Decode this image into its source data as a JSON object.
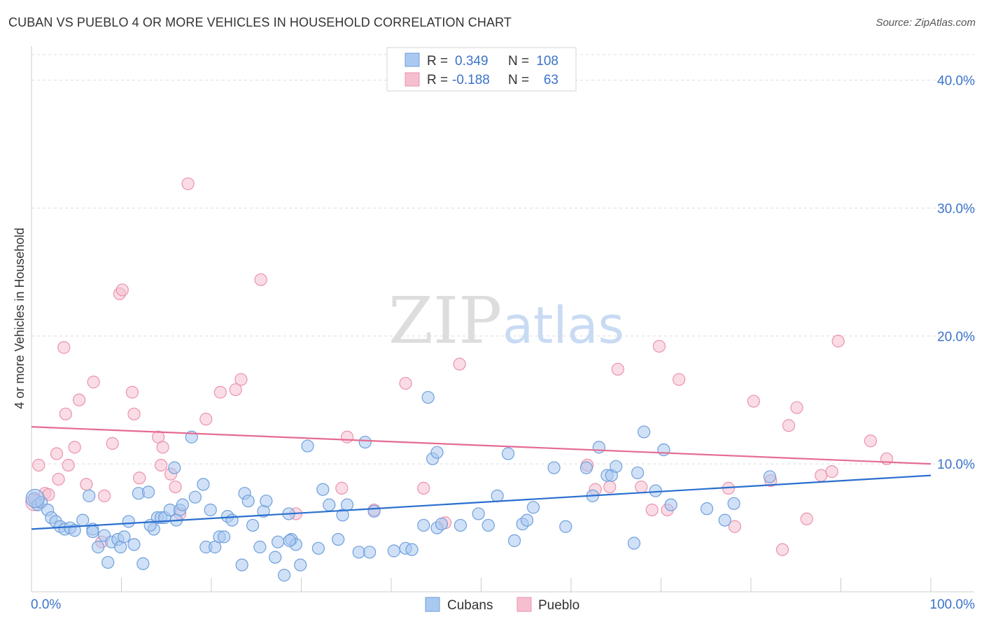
{
  "header": {
    "title": "CUBAN VS PUEBLO 4 OR MORE VEHICLES IN HOUSEHOLD CORRELATION CHART",
    "source": "Source: ZipAtlas.com"
  },
  "watermark": {
    "zip": "ZIP",
    "atlas": "atlas"
  },
  "stats_box": {
    "rows": [
      {
        "r_label": "R =",
        "r_value": "0.349",
        "n_label": "N =",
        "n_value": "108"
      },
      {
        "r_label": "R =",
        "r_value": "-0.188",
        "n_label": "N =",
        "n_value": "63"
      }
    ]
  },
  "legend": {
    "items": [
      "Cubans",
      "Pueblo"
    ]
  },
  "colors": {
    "cubans_fill": "#aac9f0",
    "cubans_stroke": "#6f9fdc",
    "cubans_line": "#2a6fcf",
    "pueblo_fill": "#f6bfd0",
    "pueblo_stroke": "#ea93ae",
    "pueblo_line": "#e56b93",
    "tick_text": "#3b73c9",
    "grid": "#dddddd"
  },
  "chart_data": {
    "type": "scatter",
    "title": "CUBAN VS PUEBLO 4 OR MORE VEHICLES IN HOUSEHOLD CORRELATION CHART",
    "xlabel": "",
    "ylabel": "4 or more Vehicles in Household",
    "xlim": [
      0,
      100
    ],
    "ylim": [
      0,
      42
    ],
    "x_ticks": [
      "0.0%",
      "100.0%"
    ],
    "y_ticks": [
      {
        "value": 10,
        "label": "10.0%"
      },
      {
        "value": 20,
        "label": "20.0%"
      },
      {
        "value": 30,
        "label": "30.0%"
      },
      {
        "value": 40,
        "label": "40.0%"
      }
    ],
    "grid": "horizontal dashed",
    "legend_position": "bottom-center",
    "series": [
      {
        "name": "Cubans",
        "r": 0.349,
        "n": 108,
        "trend": [
          [
            0,
            4.9
          ],
          [
            100,
            9.1
          ]
        ],
        "points": [
          [
            0.3,
            7.3
          ],
          [
            0.7,
            6.8
          ],
          [
            1.1,
            7.0
          ],
          [
            1.8,
            6.4
          ],
          [
            2.2,
            5.8
          ],
          [
            2.7,
            5.5
          ],
          [
            3.2,
            5.1
          ],
          [
            3.7,
            4.9
          ],
          [
            4.3,
            5.0
          ],
          [
            4.8,
            4.8
          ],
          [
            5.7,
            5.6
          ],
          [
            6.4,
            7.5
          ],
          [
            6.8,
            4.9
          ],
          [
            7.4,
            3.5
          ],
          [
            8.1,
            4.4
          ],
          [
            8.5,
            2.3
          ],
          [
            8.9,
            3.9
          ],
          [
            9.6,
            4.1
          ],
          [
            9.9,
            3.5
          ],
          [
            10.3,
            4.3
          ],
          [
            10.8,
            5.5
          ],
          [
            11.4,
            3.7
          ],
          [
            11.9,
            7.7
          ],
          [
            12.4,
            2.2
          ],
          [
            13.0,
            7.8
          ],
          [
            13.6,
            4.9
          ],
          [
            14.0,
            5.8
          ],
          [
            14.4,
            5.8
          ],
          [
            14.8,
            5.8
          ],
          [
            15.4,
            6.4
          ],
          [
            15.9,
            9.7
          ],
          [
            16.5,
            6.4
          ],
          [
            16.8,
            6.8
          ],
          [
            17.8,
            12.1
          ],
          [
            18.2,
            7.4
          ],
          [
            19.1,
            8.4
          ],
          [
            19.4,
            3.5
          ],
          [
            19.9,
            6.4
          ],
          [
            20.4,
            3.5
          ],
          [
            20.9,
            4.3
          ],
          [
            21.4,
            4.3
          ],
          [
            21.8,
            5.9
          ],
          [
            22.3,
            5.6
          ],
          [
            23.4,
            2.1
          ],
          [
            23.7,
            7.7
          ],
          [
            24.1,
            7.1
          ],
          [
            24.6,
            5.2
          ],
          [
            25.4,
            3.5
          ],
          [
            25.8,
            6.3
          ],
          [
            26.1,
            7.1
          ],
          [
            27.1,
            2.7
          ],
          [
            27.4,
            3.9
          ],
          [
            28.1,
            1.3
          ],
          [
            28.6,
            6.1
          ],
          [
            28.9,
            4.1
          ],
          [
            29.4,
            3.7
          ],
          [
            29.9,
            2.1
          ],
          [
            30.7,
            11.4
          ],
          [
            31.9,
            3.4
          ],
          [
            32.4,
            8.0
          ],
          [
            33.1,
            6.8
          ],
          [
            34.1,
            4.1
          ],
          [
            34.6,
            6.0
          ],
          [
            35.1,
            6.8
          ],
          [
            36.4,
            3.1
          ],
          [
            37.1,
            11.7
          ],
          [
            37.6,
            3.1
          ],
          [
            38.1,
            6.3
          ],
          [
            40.3,
            3.2
          ],
          [
            41.6,
            3.4
          ],
          [
            42.3,
            3.3
          ],
          [
            43.6,
            5.2
          ],
          [
            44.1,
            15.2
          ],
          [
            44.6,
            10.4
          ],
          [
            45.1,
            10.9
          ],
          [
            45.1,
            5.0
          ],
          [
            45.6,
            5.3
          ],
          [
            47.7,
            5.2
          ],
          [
            49.7,
            6.1
          ],
          [
            50.8,
            5.2
          ],
          [
            51.8,
            7.5
          ],
          [
            53.0,
            10.8
          ],
          [
            53.7,
            4.0
          ],
          [
            54.6,
            5.3
          ],
          [
            55.1,
            5.6
          ],
          [
            55.8,
            6.6
          ],
          [
            58.1,
            9.7
          ],
          [
            59.4,
            5.1
          ],
          [
            61.7,
            9.7
          ],
          [
            62.4,
            7.5
          ],
          [
            63.1,
            11.3
          ],
          [
            64.0,
            9.1
          ],
          [
            64.5,
            9.1
          ],
          [
            65.0,
            9.8
          ],
          [
            67.0,
            3.8
          ],
          [
            67.4,
            9.3
          ],
          [
            68.1,
            12.5
          ],
          [
            69.4,
            7.9
          ],
          [
            70.3,
            11.1
          ],
          [
            71.1,
            6.8
          ],
          [
            75.1,
            6.5
          ],
          [
            77.1,
            5.6
          ],
          [
            78.1,
            6.9
          ],
          [
            82.1,
            9.0
          ],
          [
            28.7,
            4.0
          ],
          [
            16.1,
            5.6
          ],
          [
            13.2,
            5.2
          ],
          [
            6.8,
            4.7
          ]
        ]
      },
      {
        "name": "Pueblo",
        "r": -0.188,
        "n": 63,
        "trend": [
          [
            0,
            12.9
          ],
          [
            100,
            10.0
          ]
        ],
        "points": [
          [
            0.4,
            7.1
          ],
          [
            0.8,
            9.9
          ],
          [
            1.5,
            7.7
          ],
          [
            1.9,
            7.6
          ],
          [
            2.8,
            10.8
          ],
          [
            3.0,
            8.8
          ],
          [
            3.6,
            19.1
          ],
          [
            3.8,
            13.9
          ],
          [
            4.1,
            9.9
          ],
          [
            4.8,
            11.3
          ],
          [
            5.3,
            15.0
          ],
          [
            6.1,
            8.4
          ],
          [
            6.9,
            16.4
          ],
          [
            7.8,
            3.9
          ],
          [
            8.1,
            7.5
          ],
          [
            9.0,
            11.6
          ],
          [
            9.8,
            23.3
          ],
          [
            10.1,
            23.6
          ],
          [
            11.2,
            15.6
          ],
          [
            11.4,
            13.9
          ],
          [
            12.0,
            8.9
          ],
          [
            14.1,
            12.1
          ],
          [
            14.4,
            9.9
          ],
          [
            14.6,
            11.3
          ],
          [
            15.5,
            9.2
          ],
          [
            16.0,
            8.2
          ],
          [
            16.5,
            6.1
          ],
          [
            17.4,
            31.9
          ],
          [
            19.4,
            13.5
          ],
          [
            21.0,
            15.6
          ],
          [
            22.7,
            15.8
          ],
          [
            23.3,
            16.6
          ],
          [
            25.5,
            24.4
          ],
          [
            29.4,
            6.1
          ],
          [
            34.5,
            8.1
          ],
          [
            35.1,
            12.1
          ],
          [
            38.1,
            6.4
          ],
          [
            41.6,
            16.3
          ],
          [
            43.6,
            8.1
          ],
          [
            46.0,
            5.4
          ],
          [
            47.6,
            17.8
          ],
          [
            61.8,
            9.9
          ],
          [
            62.7,
            8.0
          ],
          [
            64.3,
            8.2
          ],
          [
            65.2,
            17.4
          ],
          [
            67.8,
            8.2
          ],
          [
            69.0,
            6.4
          ],
          [
            69.8,
            19.2
          ],
          [
            70.7,
            6.4
          ],
          [
            72.0,
            16.6
          ],
          [
            77.5,
            8.1
          ],
          [
            78.2,
            5.1
          ],
          [
            80.3,
            14.9
          ],
          [
            82.2,
            8.7
          ],
          [
            83.5,
            3.3
          ],
          [
            84.2,
            13.0
          ],
          [
            85.1,
            14.4
          ],
          [
            86.2,
            5.7
          ],
          [
            87.8,
            9.1
          ],
          [
            89.0,
            9.4
          ],
          [
            89.7,
            19.6
          ],
          [
            93.3,
            11.8
          ],
          [
            95.1,
            10.4
          ]
        ]
      }
    ]
  }
}
